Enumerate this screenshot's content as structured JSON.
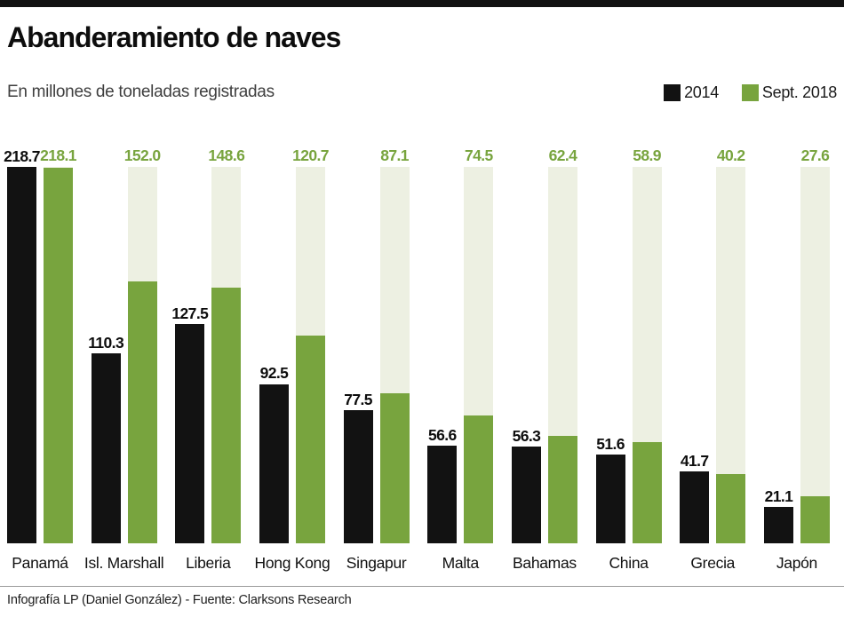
{
  "header": {
    "title": "Abanderamiento de naves",
    "subtitle": "En millones de toneladas registradas"
  },
  "legend": [
    {
      "label": "2014",
      "color": "#121212"
    },
    {
      "label": "Sept. 2018",
      "color": "#78a43e"
    }
  ],
  "colors": {
    "bar_2014": "#121212",
    "bar_2018": "#78a43e",
    "track_background": "#edf0e2",
    "page_background": "#ffffff"
  },
  "chart_data": {
    "type": "bar",
    "title": "Abanderamiento de naves",
    "subtitle": "En millones de toneladas registradas",
    "unit": "millones de toneladas registradas",
    "categories": [
      "Panamá",
      "Isl. Marshall",
      "Liberia",
      "Hong Kong",
      "Singapur",
      "Malta",
      "Bahamas",
      "China",
      "Grecia",
      "Japón"
    ],
    "series": [
      {
        "name": "2014",
        "color": "#121212",
        "values": [
          218.7,
          110.3,
          127.5,
          92.5,
          77.5,
          56.6,
          56.3,
          51.6,
          41.7,
          21.1
        ]
      },
      {
        "name": "Sept. 2018",
        "color": "#78a43e",
        "values": [
          218.1,
          152.0,
          148.6,
          120.7,
          87.1,
          74.5,
          62.4,
          58.9,
          40.2,
          27.6
        ]
      }
    ],
    "xlabel": "",
    "ylabel": "Millones de toneladas registradas",
    "ylim": [
      0,
      218.7
    ],
    "grid": false,
    "value_labels": true,
    "legend_position": "top-right"
  },
  "footer": {
    "credit": "Infografía LP (Daniel González) - Fuente: Clarksons Research"
  }
}
